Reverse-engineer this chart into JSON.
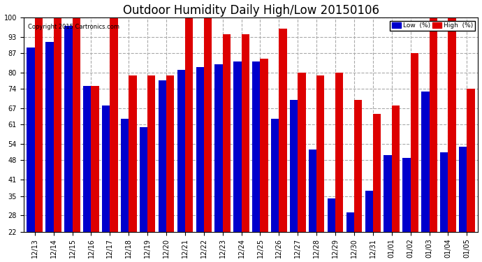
{
  "title": "Outdoor Humidity Daily High/Low 20150106",
  "copyright": "Copyright 2015 Cartronics.com",
  "dates": [
    "12/13",
    "12/14",
    "12/15",
    "12/16",
    "12/17",
    "12/18",
    "12/19",
    "12/20",
    "12/21",
    "12/22",
    "12/23",
    "12/24",
    "12/25",
    "12/26",
    "12/27",
    "12/28",
    "12/29",
    "12/30",
    "12/31",
    "01/01",
    "01/02",
    "01/03",
    "01/04",
    "01/05"
  ],
  "low": [
    89,
    91,
    97,
    75,
    68,
    63,
    60,
    77,
    81,
    82,
    83,
    84,
    84,
    63,
    70,
    52,
    34,
    29,
    37,
    50,
    49,
    73,
    51,
    53
  ],
  "high": [
    100,
    100,
    100,
    75,
    100,
    79,
    79,
    79,
    100,
    100,
    94,
    94,
    85,
    96,
    80,
    79,
    80,
    70,
    65,
    68,
    87,
    100,
    100,
    74
  ],
  "low_color": "#0000cc",
  "high_color": "#dd0000",
  "bg_color": "#ffffff",
  "grid_color": "#aaaaaa",
  "yticks": [
    22,
    28,
    35,
    41,
    48,
    54,
    61,
    67,
    74,
    80,
    87,
    93,
    100
  ],
  "ymin": 22,
  "ymax": 100,
  "bar_width": 0.42,
  "title_fontsize": 12,
  "tick_fontsize": 7,
  "legend_low_label": "Low  (%)",
  "legend_high_label": "High  (%)"
}
